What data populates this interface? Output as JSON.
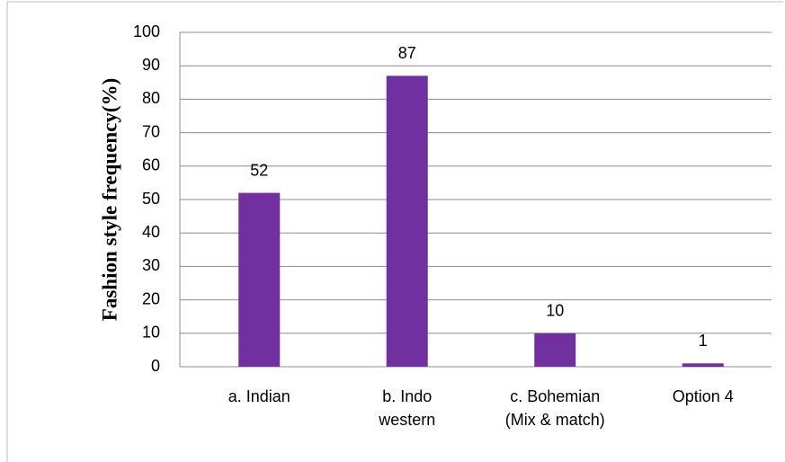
{
  "chart_data": {
    "type": "bar",
    "y_label": "Fashion style frequency(%)",
    "categories": [
      "a. Indian",
      "b. Indo\nwestern",
      "c. Bohemian\n(Mix & match)",
      "Option 4"
    ],
    "values": [
      52,
      87,
      10,
      1
    ],
    "color": "#7030a0",
    "ylim": [
      0,
      100
    ],
    "yticks": [
      0,
      10,
      20,
      30,
      40,
      50,
      60,
      70,
      80,
      90,
      100
    ],
    "grid": true
  }
}
